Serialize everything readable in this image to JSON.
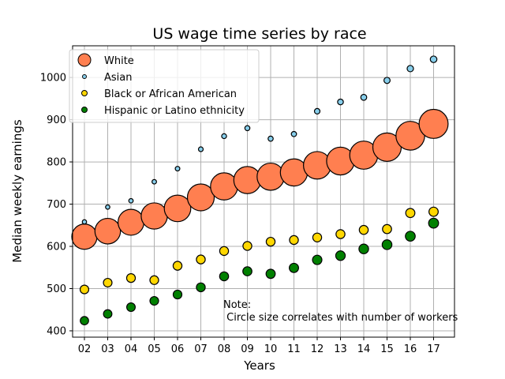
{
  "chart_data": {
    "type": "scatter",
    "title": "US wage time series by race",
    "xlabel": "Years",
    "ylabel": "Median weekly earnings",
    "categories": [
      "02",
      "03",
      "04",
      "05",
      "06",
      "07",
      "08",
      "09",
      "10",
      "11",
      "12",
      "13",
      "14",
      "15",
      "16",
      "17"
    ],
    "ylim": [
      385,
      1075
    ],
    "yticks": [
      400,
      500,
      600,
      700,
      800,
      900,
      1000
    ],
    "grid": true,
    "legend_position": "top-left",
    "series": [
      {
        "name": "White",
        "color": "#FF7F50",
        "size_scale": "large",
        "values": [
          623,
          636,
          657,
          672,
          690,
          716,
          742,
          757,
          765,
          775,
          792,
          802,
          816,
          835,
          862,
          890
        ],
        "radii_rel": [
          0.8,
          0.81,
          0.82,
          0.83,
          0.84,
          0.85,
          0.86,
          0.86,
          0.86,
          0.86,
          0.87,
          0.88,
          0.89,
          0.9,
          0.91,
          0.92
        ]
      },
      {
        "name": "Asian",
        "color": "#87CEEB",
        "size_scale": "small",
        "values": [
          658,
          693,
          708,
          753,
          784,
          830,
          861,
          880,
          855,
          866,
          920,
          942,
          953,
          993,
          1021,
          1043
        ],
        "radii_rel": [
          0.55,
          0.55,
          0.56,
          0.57,
          0.58,
          0.6,
          0.62,
          0.64,
          0.65,
          0.66,
          0.7,
          0.73,
          0.75,
          0.78,
          0.81,
          0.84
        ]
      },
      {
        "name": "Black or African American",
        "color": "#FFD700",
        "size_scale": "medium",
        "values": [
          498,
          514,
          525,
          520,
          554,
          569,
          589,
          601,
          611,
          615,
          621,
          629,
          639,
          641,
          679,
          682
        ],
        "radii_rel": [
          0.78,
          0.78,
          0.79,
          0.79,
          0.8,
          0.8,
          0.8,
          0.8,
          0.8,
          0.8,
          0.8,
          0.81,
          0.81,
          0.82,
          0.83,
          0.84
        ]
      },
      {
        "name": "Hispanic or Latino ethnicity",
        "color": "#008000",
        "size_scale": "medium",
        "values": [
          424,
          440,
          456,
          471,
          486,
          503,
          529,
          541,
          535,
          549,
          568,
          578,
          594,
          604,
          624,
          655
        ],
        "radii_rel": [
          0.75,
          0.76,
          0.77,
          0.78,
          0.79,
          0.8,
          0.81,
          0.82,
          0.83,
          0.84,
          0.85,
          0.86,
          0.87,
          0.88,
          0.89,
          0.9
        ]
      }
    ],
    "annotation": {
      "line1": "Note:",
      "line2": " Circle size correlates with number of workers",
      "x_anchor": "08",
      "y_anchor": 428
    }
  }
}
